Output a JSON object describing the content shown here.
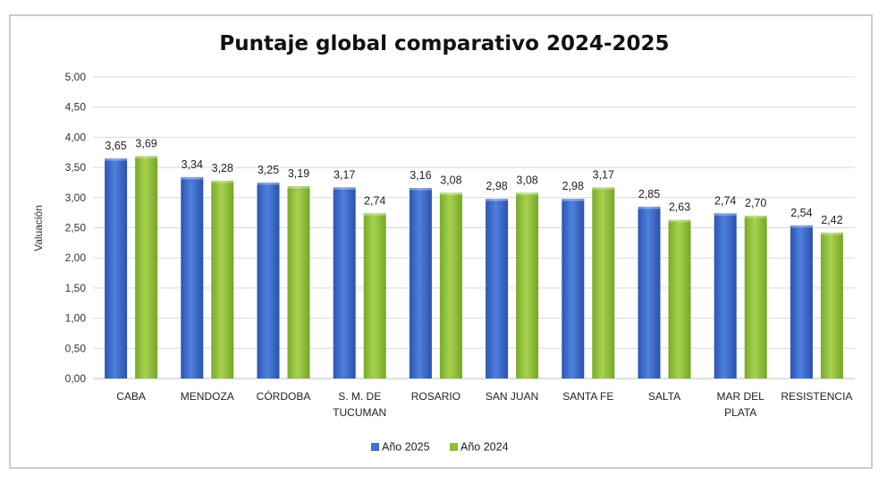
{
  "chart_data": {
    "type": "bar",
    "title": "Puntaje global comparativo 2024-2025",
    "ylabel": "Valuación",
    "xlabel": "",
    "ylim": [
      0,
      5
    ],
    "yticks": [
      "0,00",
      "0,50",
      "1,00",
      "1,50",
      "2,00",
      "2,50",
      "3,00",
      "3,50",
      "4,00",
      "4,50",
      "5,00"
    ],
    "grid": true,
    "legend_position": "bottom",
    "categories": [
      [
        "CABA"
      ],
      [
        "MENDOZA"
      ],
      [
        "CÓRDOBA"
      ],
      [
        "S. M. DE",
        "TUCUMAN"
      ],
      [
        "ROSARIO"
      ],
      [
        "SAN JUAN"
      ],
      [
        "SANTA FE"
      ],
      [
        "SALTA"
      ],
      [
        "MAR DEL",
        "PLATA"
      ],
      [
        "RESISTENCIA"
      ]
    ],
    "series": [
      {
        "name": "Año 2025",
        "color": "#3f6fd0",
        "values": [
          3.65,
          3.34,
          3.25,
          3.17,
          3.16,
          2.98,
          2.98,
          2.85,
          2.74,
          2.54
        ],
        "labels": [
          "3,65",
          "3,34",
          "3,25",
          "3,17",
          "3,16",
          "2,98",
          "2,98",
          "2,85",
          "2,74",
          "2,54"
        ]
      },
      {
        "name": "Año 2024",
        "color": "#8ebf3a",
        "values": [
          3.69,
          3.28,
          3.19,
          2.74,
          3.08,
          3.08,
          3.17,
          2.63,
          2.7,
          2.42
        ],
        "labels": [
          "3,69",
          "3,28",
          "3,19",
          "2,74",
          "3,08",
          "3,08",
          "3,17",
          "2,63",
          "2,70",
          "2,42"
        ]
      }
    ]
  }
}
